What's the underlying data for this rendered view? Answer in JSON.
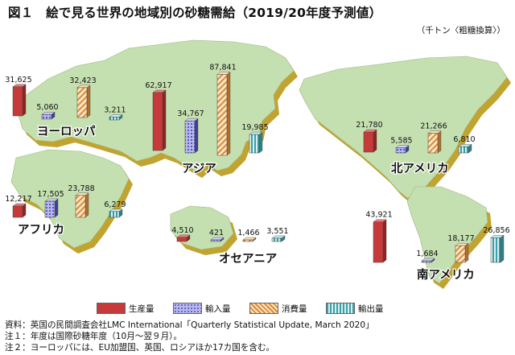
{
  "title": "図１　絵で見る世界の地域別の砂糖需給（2019/20年度予測値）",
  "unit": "（千トン〈粗糖換算〉）",
  "legend": [
    {
      "key": "production",
      "label": "生産量",
      "color": "#c73a3a",
      "pattern": "solid"
    },
    {
      "key": "import",
      "label": "輸入量",
      "color": "#8080d6",
      "pattern": "dots"
    },
    {
      "key": "consumption",
      "label": "消費量",
      "color": "#e8a858",
      "pattern": "diagonal"
    },
    {
      "key": "export",
      "label": "輸出量",
      "color": "#4fb0b6",
      "pattern": "vertical"
    }
  ],
  "notes": [
    "資料：英国の民間調査会社LMC International「Quarterly Statistical Update, March 2020」",
    "注１：年度は国際砂糖年度（10月～翌９月）。",
    "注２：ヨーロッパには、EU加盟国、英国、ロシアほか17カ国を含む。"
  ],
  "chart_data": {
    "type": "bar",
    "title": "図１　絵で見る世界の地域別の砂糖需給（2019/20年度予測値）",
    "unit": "千トン〈粗糖換算〉",
    "categories": [
      "ヨーロッパ",
      "アジア",
      "北アメリカ",
      "アフリカ",
      "オセアニア",
      "南アメリカ"
    ],
    "series": [
      {
        "name": "生産量",
        "values": [
          31625,
          62917,
          21780,
          12217,
          4510,
          43921
        ]
      },
      {
        "name": "輸入量",
        "values": [
          5060,
          34767,
          5585,
          17505,
          421,
          1684
        ]
      },
      {
        "name": "消費量",
        "values": [
          32423,
          87841,
          21266,
          23788,
          1466,
          18177
        ]
      },
      {
        "name": "輸出量",
        "values": [
          3211,
          19985,
          6810,
          6279,
          3551,
          26856
        ]
      }
    ],
    "labels": [
      [
        "31,625",
        "5,060",
        "32,423",
        "3,211"
      ],
      [
        "62,917",
        "34,767",
        "87,841",
        "19,985"
      ],
      [
        "21,780",
        "5,585",
        "21,266",
        "6,810"
      ],
      [
        "12,217",
        "17,505",
        "23,788",
        "6,279"
      ],
      [
        "4,510",
        "421",
        "1,466",
        "3,551"
      ],
      [
        "43,921",
        "1,684",
        "18,177",
        "26,856"
      ]
    ],
    "legend_position": "bottom",
    "grid": false
  }
}
